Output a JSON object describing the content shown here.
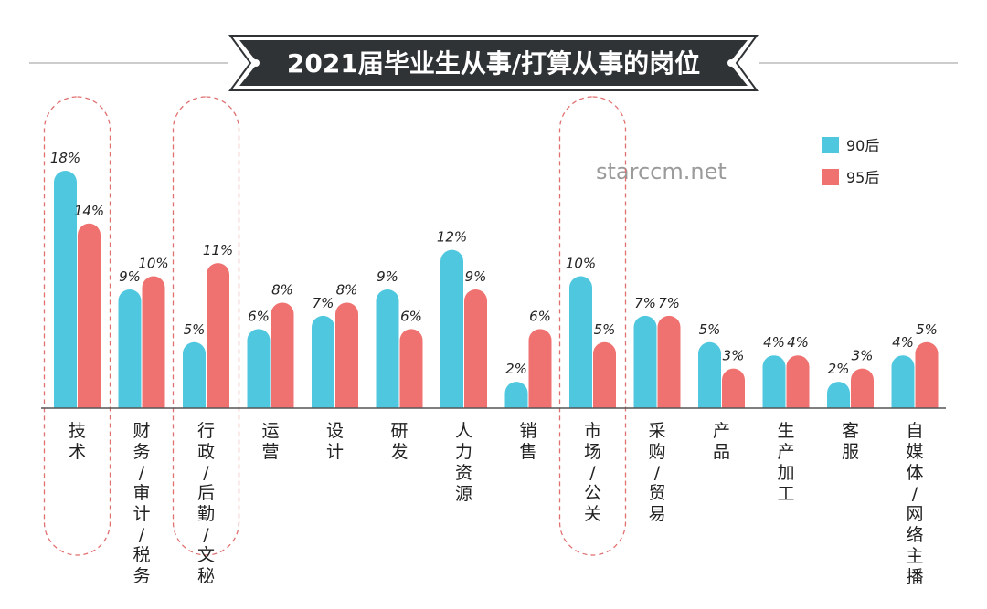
{
  "chart_data": {
    "type": "bar",
    "title": "2021届毕业生从事/打算从事的岗位",
    "categories": [
      "技术",
      "财务/审计/税务",
      "行政/后勤/文秘",
      "运营",
      "设计",
      "研发",
      "人力资源",
      "销售",
      "市场/公关",
      "采购/贸易",
      "产品",
      "生产加工",
      "客服",
      "自媒体/网络主播"
    ],
    "series": [
      {
        "name": "90后",
        "color": "#4fc8df",
        "values": [
          18,
          9,
          5,
          6,
          7,
          9,
          12,
          2,
          10,
          7,
          5,
          4,
          2,
          4
        ],
        "labels": [
          "18%",
          "9%",
          "5%",
          "6%",
          "7%",
          "9%",
          "12%",
          "2%",
          "10%",
          "7%",
          "5%",
          "4%",
          "2%",
          "4%"
        ]
      },
      {
        "name": "95后",
        "color": "#f07270",
        "values": [
          14,
          10,
          11,
          8,
          8,
          6,
          9,
          6,
          5,
          7,
          3,
          4,
          3,
          5
        ],
        "labels": [
          "14%",
          "10%",
          "11%",
          "8%",
          "8%",
          "6%",
          "9%",
          "6%",
          "5%",
          "7%",
          "3%",
          "4%",
          "3%",
          "5%"
        ]
      }
    ],
    "highlighted_categories": [
      "技术",
      "行政/后勤/文秘",
      "市场/公关"
    ],
    "legend": "top-right",
    "ylim": [
      0,
      18
    ],
    "grid": false
  },
  "watermark": "starccm.net",
  "colors": {
    "title_bg": "#2f3336",
    "baseline": "#555555",
    "highlight": "#e07070"
  }
}
